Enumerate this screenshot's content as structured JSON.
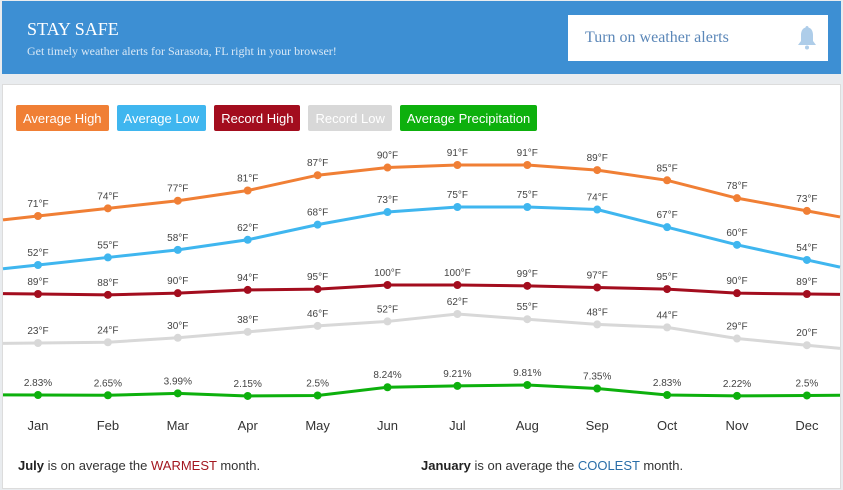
{
  "banner": {
    "title": "STAY SAFE",
    "subtitle": "Get timely weather alerts for Sarasota, FL right in your browser!",
    "button_label": "Turn on weather alerts",
    "button_icon": "bell-icon"
  },
  "chart_data": {
    "type": "line",
    "categories": [
      "Jan",
      "Feb",
      "Mar",
      "Apr",
      "May",
      "Jun",
      "Jul",
      "Aug",
      "Sep",
      "Oct",
      "Nov",
      "Dec"
    ],
    "legend_placement": "top-left",
    "grid": false,
    "series": [
      {
        "name": "Average High",
        "color": "#f07f35",
        "unit": "°F",
        "values": [
          71,
          74,
          77,
          81,
          87,
          90,
          91,
          91,
          89,
          85,
          78,
          73
        ]
      },
      {
        "name": "Average Low",
        "color": "#3fb6ef",
        "unit": "°F",
        "values": [
          52,
          55,
          58,
          62,
          68,
          73,
          75,
          75,
          74,
          67,
          60,
          54
        ]
      },
      {
        "name": "Record High",
        "color": "#a30d1e",
        "unit": "°F",
        "values": [
          89,
          88,
          90,
          94,
          95,
          100,
          100,
          99,
          97,
          95,
          90,
          89
        ]
      },
      {
        "name": "Record Low",
        "color": "#d8d8d8",
        "unit": "°F",
        "values": [
          23,
          24,
          30,
          38,
          46,
          52,
          62,
          55,
          48,
          44,
          29,
          20
        ]
      },
      {
        "name": "Average Precipitation",
        "color": "#0db00d",
        "unit": "%",
        "labels": [
          "2.83%",
          "2.65%",
          "3.99%",
          "2.15%",
          "2.5%",
          "8.24%",
          "9.21%",
          "9.81%",
          "7.35%",
          "2.83%",
          "2.22%",
          "2.5%"
        ],
        "values": [
          2.83,
          2.65,
          3.99,
          2.15,
          2.5,
          8.24,
          9.21,
          9.81,
          7.35,
          2.83,
          2.22,
          2.5
        ]
      }
    ]
  },
  "footer": {
    "warm_month": "July",
    "warm_mid": " is on average the ",
    "warm_word": "WARMEST",
    "warm_end": " month.",
    "cool_month": "January",
    "cool_mid": " is on average the ",
    "cool_word": "COOLEST",
    "cool_end": " month.",
    "warm_color": "#a3161f",
    "cool_color": "#2a6ea8"
  }
}
